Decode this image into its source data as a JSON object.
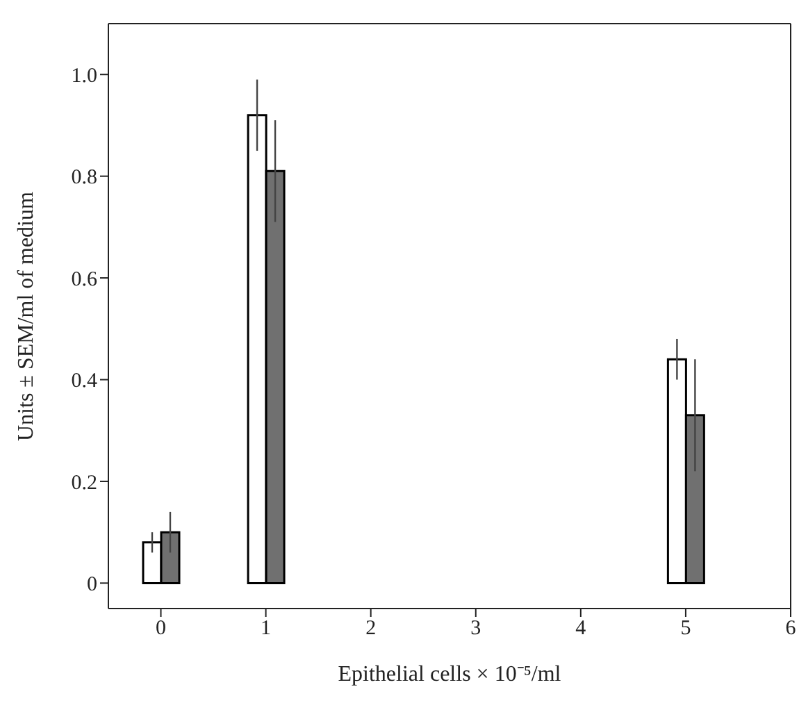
{
  "chart_data": {
    "type": "bar",
    "xlabel": "Epithelial cells × 10⁻⁵/ml",
    "ylabel": "Units ± SEM/ml of medium",
    "x": [
      0,
      1,
      5
    ],
    "series": [
      {
        "color": "#ffffff",
        "values": [
          0.08,
          0.92,
          0.44
        ],
        "errors": [
          0.02,
          0.07,
          0.04
        ]
      },
      {
        "color": "#707070",
        "values": [
          0.1,
          0.81,
          0.33
        ],
        "errors": [
          0.04,
          0.1,
          0.11
        ]
      }
    ],
    "xlim": [
      -0.5,
      6
    ],
    "xticks": [
      0,
      1,
      2,
      3,
      4,
      5,
      6
    ],
    "ylim": [
      -0.05,
      1.1
    ],
    "yticks": [
      0,
      0.2,
      0.4,
      0.6,
      0.8,
      {
        "value": 1,
        "label": "1.0"
      }
    ],
    "grid": false,
    "legend": false
  }
}
